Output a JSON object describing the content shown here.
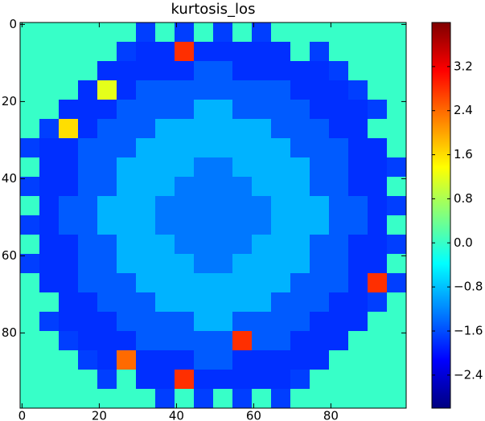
{
  "chart_data": {
    "type": "heatmap",
    "title": "kurtosis_los",
    "colormap": "jet",
    "xlim": [
      -0.5,
      99.5
    ],
    "ylim": [
      99.5,
      -0.5
    ],
    "xticks": [
      0,
      20,
      40,
      60,
      80
    ],
    "yticks": [
      0,
      20,
      40,
      60,
      80
    ],
    "clim": [
      -3.0,
      4.0
    ],
    "cticks": [
      {
        "value": -2.4,
        "label": "−2.4"
      },
      {
        "value": -1.6,
        "label": "−1.6"
      },
      {
        "value": -0.8,
        "label": "−0.8"
      },
      {
        "value": 0.0,
        "label": "0.0"
      },
      0.8,
      1.6,
      2.4,
      3.2
    ],
    "values": [
      [
        0,
        0,
        0,
        0,
        0,
        0,
        -1.7,
        0,
        -1.7,
        0,
        -1.7,
        0,
        -1.7,
        0,
        0,
        0,
        0,
        0,
        0,
        0
      ],
      [
        0,
        0,
        0,
        0,
        0,
        -1.7,
        -1.8,
        -1.8,
        2.8,
        -1.8,
        -1.8,
        -1.8,
        -1.8,
        -1.8,
        0,
        -1.7,
        0,
        0,
        0,
        0
      ],
      [
        0,
        0,
        0,
        0,
        -1.8,
        -1.8,
        -1.8,
        -1.8,
        -1.8,
        -1.5,
        -1.5,
        -1.8,
        -1.8,
        -1.8,
        -1.8,
        -1.8,
        -1.7,
        0,
        0,
        0
      ],
      [
        0,
        0,
        0,
        -1.8,
        1.2,
        -1.8,
        -1.5,
        -1.5,
        -1.5,
        -1.5,
        -1.5,
        -1.5,
        -1.5,
        -1.5,
        -1.8,
        -1.8,
        -1.8,
        -1.7,
        0,
        0
      ],
      [
        0,
        0,
        -1.8,
        -1.8,
        -1.8,
        -1.5,
        -1.5,
        -1.5,
        -1.5,
        -0.9,
        -0.9,
        -1.5,
        -1.5,
        -1.5,
        -1.5,
        -1.8,
        -1.8,
        -1.8,
        -1.7,
        0
      ],
      [
        0,
        -1.7,
        1.6,
        -1.8,
        -1.5,
        -1.5,
        -1.5,
        -0.9,
        -0.9,
        -0.9,
        -0.9,
        -0.9,
        -0.9,
        -1.5,
        -1.5,
        -1.5,
        -1.8,
        -1.8,
        0,
        0
      ],
      [
        -1.7,
        -1.8,
        -1.8,
        -1.5,
        -1.5,
        -1.5,
        -0.9,
        -0.9,
        -0.9,
        -0.9,
        -0.9,
        -0.9,
        -0.9,
        -0.9,
        -1.5,
        -1.5,
        -1.5,
        -1.8,
        -1.8,
        0
      ],
      [
        0,
        -1.8,
        -1.8,
        -1.5,
        -1.5,
        -0.9,
        -0.9,
        -0.9,
        -0.9,
        -1.3,
        -1.3,
        -0.9,
        -0.9,
        -0.9,
        -0.9,
        -1.5,
        -1.5,
        -1.8,
        -1.8,
        -1.7
      ],
      [
        -1.7,
        -1.8,
        -1.8,
        -1.5,
        -1.5,
        -0.9,
        -0.9,
        -0.9,
        -1.3,
        -1.3,
        -1.3,
        -1.3,
        -0.9,
        -0.9,
        -0.9,
        -1.5,
        -1.5,
        -1.8,
        -1.8,
        0
      ],
      [
        0,
        -1.8,
        -1.5,
        -1.5,
        -0.9,
        -0.9,
        -0.9,
        -1.3,
        -1.3,
        -1.3,
        -1.3,
        -1.3,
        -1.3,
        -0.9,
        -0.9,
        -0.9,
        -1.5,
        -1.5,
        -1.8,
        -1.7
      ],
      [
        -1.7,
        -1.8,
        -1.5,
        -1.5,
        -0.9,
        -0.9,
        -0.9,
        -1.3,
        -1.3,
        -1.3,
        -1.3,
        -1.3,
        -1.3,
        -0.9,
        -0.9,
        -0.9,
        -1.5,
        -1.5,
        -1.8,
        0
      ],
      [
        0,
        -1.8,
        -1.8,
        -1.5,
        -1.5,
        -0.9,
        -0.9,
        -0.9,
        -1.3,
        -1.3,
        -1.3,
        -1.3,
        -0.9,
        -0.9,
        -0.9,
        -1.5,
        -1.5,
        -1.8,
        -1.8,
        -1.7
      ],
      [
        -1.7,
        -1.8,
        -1.8,
        -1.5,
        -1.5,
        -0.9,
        -0.9,
        -0.9,
        -0.9,
        -1.3,
        -1.3,
        -0.9,
        -0.9,
        -0.9,
        -0.9,
        -1.5,
        -1.5,
        -1.8,
        -1.8,
        0
      ],
      [
        0,
        -1.8,
        -1.8,
        -1.5,
        -1.5,
        -1.5,
        -0.9,
        -0.9,
        -0.9,
        -0.9,
        -0.9,
        -0.9,
        -0.9,
        -0.9,
        -1.5,
        -1.5,
        -1.5,
        -1.8,
        2.8,
        -1.7
      ],
      [
        0,
        0,
        -1.8,
        -1.8,
        -1.5,
        -1.5,
        -1.5,
        -0.9,
        -0.9,
        -0.9,
        -0.9,
        -0.9,
        -0.9,
        -1.5,
        -1.5,
        -1.5,
        -1.8,
        -1.8,
        -1.7,
        0
      ],
      [
        0,
        -1.7,
        -1.8,
        -1.8,
        -1.8,
        -1.5,
        -1.5,
        -1.5,
        -1.5,
        -0.9,
        -0.9,
        -1.5,
        -1.5,
        -1.5,
        -1.5,
        -1.8,
        -1.8,
        -1.8,
        0,
        0
      ],
      [
        0,
        0,
        -1.7,
        -1.8,
        -1.8,
        -1.8,
        -1.5,
        -1.5,
        -1.5,
        -1.5,
        -1.5,
        2.8,
        -1.5,
        -1.5,
        -1.8,
        -1.8,
        -1.8,
        0,
        0,
        0
      ],
      [
        0,
        0,
        0,
        -1.7,
        -1.8,
        2.4,
        -1.8,
        -1.8,
        -1.8,
        -1.5,
        -1.5,
        -1.8,
        -1.8,
        -1.8,
        -1.8,
        -1.8,
        0,
        0,
        0,
        0
      ],
      [
        0,
        0,
        0,
        0,
        -1.7,
        0,
        -1.8,
        -1.8,
        2.8,
        -1.8,
        -1.8,
        -1.8,
        -1.8,
        -1.8,
        -1.7,
        0,
        0,
        0,
        0,
        0
      ],
      [
        0,
        0,
        0,
        0,
        0,
        0,
        0,
        -1.7,
        0,
        -1.7,
        0,
        -1.7,
        0,
        -1.7,
        0,
        0,
        0,
        0,
        0,
        0
      ]
    ]
  }
}
